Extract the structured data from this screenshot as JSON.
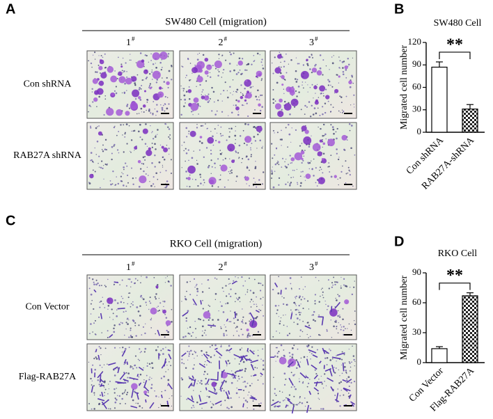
{
  "panels": [
    {
      "label": "A",
      "title": "SW480 Cell (migration)",
      "columns": [
        {
          "number": "1",
          "mark": "#"
        },
        {
          "number": "2",
          "mark": "#"
        },
        {
          "number": "3",
          "mark": "#"
        }
      ],
      "rows": [
        "Con shRNA",
        "RAB27A shRNA"
      ]
    },
    {
      "label": "C",
      "title": "RKO Cell (migration)",
      "columns": [
        {
          "number": "1",
          "mark": "#"
        },
        {
          "number": "2",
          "mark": "#"
        },
        {
          "number": "3",
          "mark": "#"
        }
      ],
      "rows": [
        "Con Vector",
        "Flag-RAB27A"
      ]
    }
  ],
  "chart_data": [
    {
      "panel_label": "B",
      "type": "bar",
      "title": "SW480 Cell",
      "y_label": "Migrated cell number",
      "categories": [
        "Con shRNA",
        "RAB27A-shRNA"
      ],
      "values": [
        87,
        31
      ],
      "errors": [
        7,
        6
      ],
      "bar_fills": [
        "plain",
        "checkered"
      ],
      "ylim": [
        0,
        120
      ],
      "yticks": [
        0,
        30,
        60,
        90,
        120
      ],
      "annotation": "**"
    },
    {
      "panel_label": "D",
      "type": "bar",
      "title": "RKO Cell",
      "y_label": "Migrated cell number",
      "categories": [
        "Con Vector",
        "Flag-RAB27A"
      ],
      "values": [
        14,
        67
      ],
      "errors": [
        2,
        3
      ],
      "bar_fills": [
        "plain",
        "checkered"
      ],
      "ylim": [
        0,
        90
      ],
      "yticks": [
        0,
        30,
        60,
        90
      ],
      "annotation": "**"
    }
  ]
}
